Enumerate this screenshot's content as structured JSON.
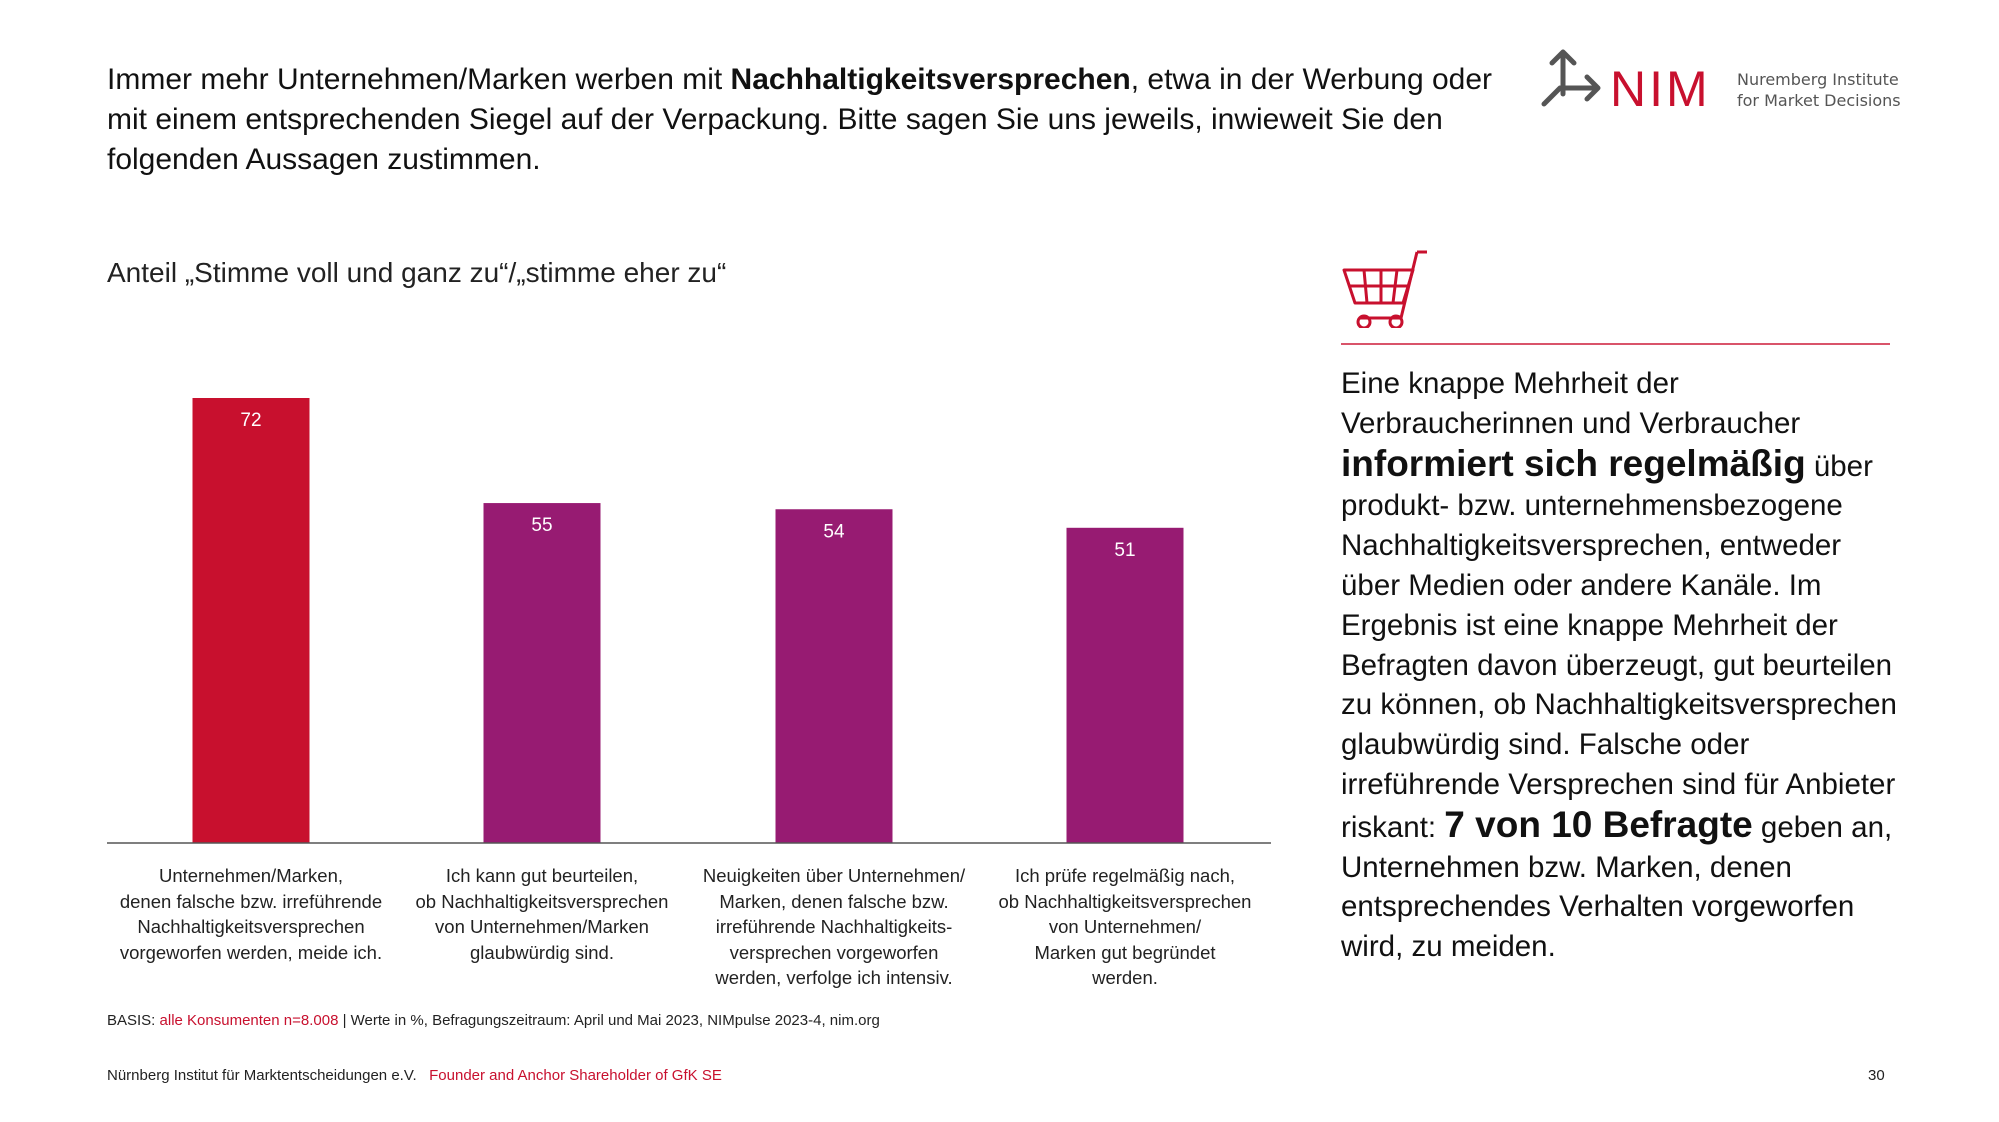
{
  "header": {
    "title_pre": "Immer mehr Unternehmen/Marken werben mit ",
    "title_bold": "Nachhaltigkeitsversprechen",
    "title_post": ", etwa in der Werbung oder mit einem entsprechenden Siegel auf der Verpackung. Bitte sagen Sie uns jeweils, inwieweit Sie den folgenden Aussagen zustimmen.",
    "logo": {
      "wordmark": "NIM",
      "line1": "Nuremberg Institute",
      "line2": "for Market Decisions"
    }
  },
  "subtitle": "Anteil „Stimme voll und ganz zu“/„stimme eher zu“",
  "chart_data": {
    "type": "bar",
    "categories": [
      "Unternehmen/Marken,\ndenen falsche bzw. irreführende\nNachhaltigkeitsversprechen\nvorgeworfen werden, meide ich.",
      "Ich kann gut beurteilen,\nob Nachhaltigkeitsversprechen\nvon Unternehmen/Marken\nglaubwürdig sind.",
      "Neuigkeiten über Unternehmen/\nMarken, denen falsche bzw.\nirreführende Nachhaltigkeits-\nversprechen vorgeworfen\nwerden, verfolge ich intensiv.",
      "Ich prüfe regelmäßig nach,\nob Nachhaltigkeitsversprechen\nvon Unternehmen/\nMarken gut begründet\nwerden."
    ],
    "values": [
      72,
      55,
      54,
      51
    ],
    "colors": [
      "#c8102e",
      "#971b72",
      "#971b72",
      "#971b72"
    ],
    "ylim": [
      0,
      80
    ],
    "grid": false,
    "unit": "%"
  },
  "panel": {
    "icon": "shopping-cart-icon",
    "accent": "#c8102e",
    "t1": "Eine knappe Mehrheit der Verbraucherinnen und Verbraucher ",
    "b1": "informiert sich regelmäßig",
    "t2": " über produkt- bzw. unternehmensbezogene Nachhaltigkeitsversprechen, entweder über Medien oder andere Kanäle. Im Ergebnis ist eine knappe Mehrheit der Befragten davon überzeugt, gut beurteilen zu können, ob Nachhaltigkeitsversprechen glaubwürdig sind. Falsche oder irreführende Versprechen sind für Anbieter riskant: ",
    "b2": "7 von 10 Befragte",
    "t3": " geben an, Unternehmen bzw. Marken, denen entsprechendes Verhalten vorgeworfen wird, zu meiden."
  },
  "basis": {
    "label": "BASIS: ",
    "highlight": "alle Konsumenten n=8.008",
    "rest": " | Werte in %, Befragungszeitraum: April und Mai 2023, NIMpulse 2023-4, nim.org"
  },
  "footer": {
    "org": "Nürnberg Institut für Marktentscheidungen e.V.",
    "tagline": "Founder and Anchor Shareholder of GfK SE",
    "page": "30"
  }
}
